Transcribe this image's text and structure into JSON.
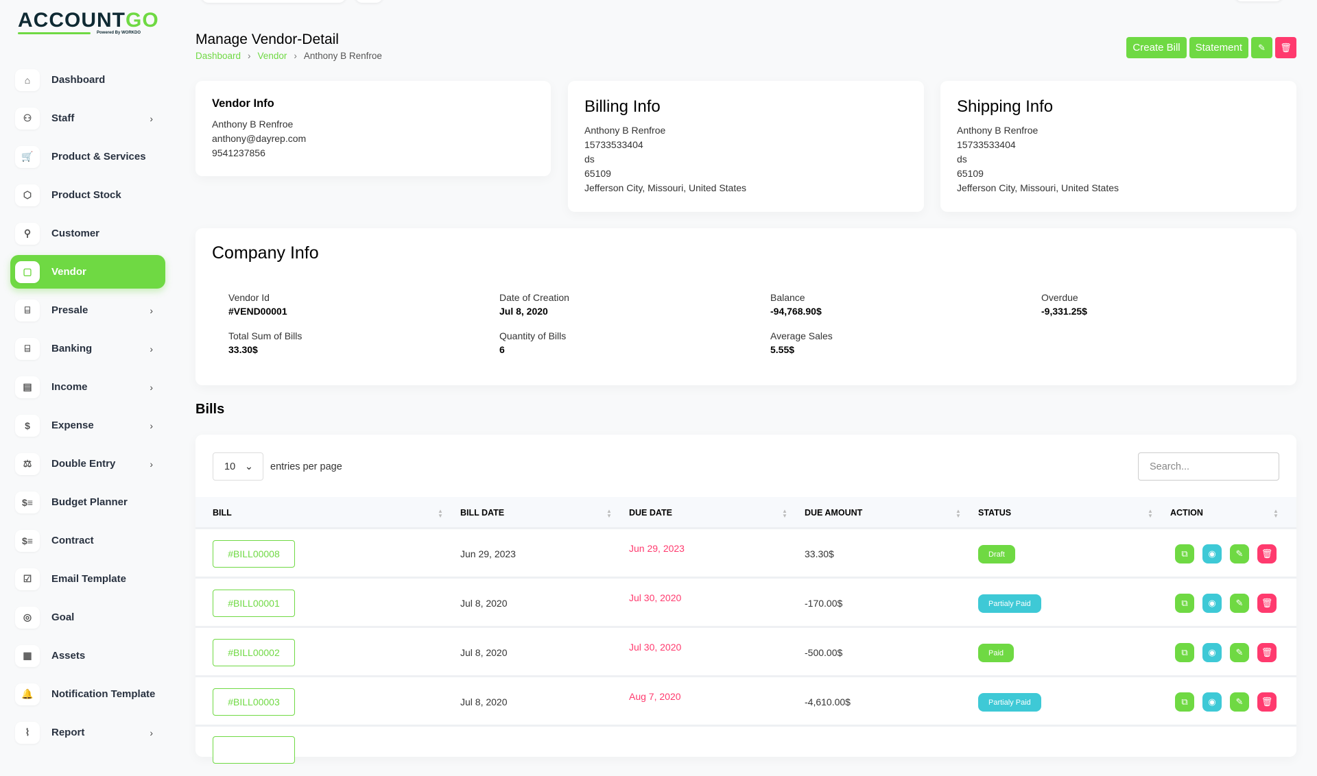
{
  "brand": {
    "name_dark": "ACCOUNT",
    "name_green": "GO",
    "powered": "Powered By WORKDO"
  },
  "sidebar": {
    "items": [
      {
        "label": "Dashboard",
        "icon": "home-icon",
        "glyph": "⌂",
        "chev": false
      },
      {
        "label": "Staff",
        "icon": "users-icon",
        "glyph": "⚇",
        "chev": true
      },
      {
        "label": "Product & Services",
        "icon": "cart-icon",
        "glyph": "🛒",
        "chev": false
      },
      {
        "label": "Product Stock",
        "icon": "box-icon",
        "glyph": "⬡",
        "chev": false
      },
      {
        "label": "Customer",
        "icon": "user-plus-icon",
        "glyph": "⚲",
        "chev": false
      },
      {
        "label": "Vendor",
        "icon": "note-icon",
        "glyph": "▢",
        "chev": false,
        "active": true
      },
      {
        "label": "Presale",
        "icon": "building-bank-icon",
        "glyph": "⌸",
        "chev": true
      },
      {
        "label": "Banking",
        "icon": "building-bank-icon",
        "glyph": "⌸",
        "chev": true
      },
      {
        "label": "Income",
        "icon": "file-invoice-icon",
        "glyph": "▤",
        "chev": true
      },
      {
        "label": "Expense",
        "icon": "receipt-dollar-icon",
        "glyph": "$",
        "chev": true
      },
      {
        "label": "Double Entry",
        "icon": "scale-icon",
        "glyph": "⚖",
        "chev": true
      },
      {
        "label": "Budget Planner",
        "icon": "coins-icon",
        "glyph": "$≡",
        "chev": false
      },
      {
        "label": "Contract",
        "icon": "coins-icon",
        "glyph": "$≡",
        "chev": false
      },
      {
        "label": "Email Template",
        "icon": "clipboard-check-icon",
        "glyph": "☑",
        "chev": false
      },
      {
        "label": "Goal",
        "icon": "target-icon",
        "glyph": "◎",
        "chev": false
      },
      {
        "label": "Assets",
        "icon": "calculator-icon",
        "glyph": "▦",
        "chev": false
      },
      {
        "label": "Notification Template",
        "icon": "bell-icon",
        "glyph": "🔔",
        "chev": false
      },
      {
        "label": "Report",
        "icon": "chart-line-icon",
        "glyph": "⌇",
        "chev": true
      }
    ]
  },
  "header": {
    "title": "Manage Vendor-Detail",
    "breadcrumb": [
      "Dashboard",
      "Vendor",
      "Anthony B Renfroe"
    ],
    "create_bill": "Create Bill",
    "statement": "Statement"
  },
  "vendor_info": {
    "title": "Vendor Info",
    "name": "Anthony B Renfroe",
    "email": "anthony@dayrep.com",
    "phone": "9541237856"
  },
  "billing_info": {
    "title": "Billing Info",
    "name": "Anthony B Renfroe",
    "phone": "15733533404",
    "line": "ds",
    "zip": "65109",
    "address": "Jefferson City, Missouri, United States"
  },
  "shipping_info": {
    "title": "Shipping Info",
    "name": "Anthony B Renfroe",
    "phone": "15733533404",
    "line": "ds",
    "zip": "65109",
    "address": "Jefferson City, Missouri, United States"
  },
  "company_info": {
    "title": "Company Info",
    "fields": [
      {
        "label": "Vendor Id",
        "value": "#VEND00001"
      },
      {
        "label": "Date of Creation",
        "value": "Jul 8, 2020"
      },
      {
        "label": "Balance",
        "value": "-94,768.90$"
      },
      {
        "label": "Overdue",
        "value": "-9,331.25$"
      },
      {
        "label": "Total Sum of Bills",
        "value": "33.30$"
      },
      {
        "label": "Quantity of Bills",
        "value": "6"
      },
      {
        "label": "Average Sales",
        "value": "5.55$"
      }
    ]
  },
  "bills": {
    "title": "Bills",
    "per_page": "10",
    "entries_label": "entries per page",
    "search_placeholder": "Search...",
    "columns": [
      "BILL",
      "BILL DATE",
      "DUE DATE",
      "DUE AMOUNT",
      "STATUS",
      "ACTION"
    ],
    "rows": [
      {
        "bill": "#BILL00008",
        "date": "Jun 29, 2023",
        "due": "Jun 29, 2023",
        "amount": "33.30$",
        "status": "Draft",
        "status_color": "#6fd943"
      },
      {
        "bill": "#BILL00001",
        "date": "Jul 8, 2020",
        "due": "Jul 30, 2020",
        "amount": "-170.00$",
        "status": "Partialy Paid",
        "status_color": "#3ec9d6"
      },
      {
        "bill": "#BILL00002",
        "date": "Jul 8, 2020",
        "due": "Jul 30, 2020",
        "amount": "-500.00$",
        "status": "Paid",
        "status_color": "#6fd943"
      },
      {
        "bill": "#BILL00003",
        "date": "Jul 8, 2020",
        "due": "Aug 7, 2020",
        "amount": "-4,610.00$",
        "status": "Partialy Paid",
        "status_color": "#3ec9d6"
      }
    ]
  },
  "colors": {
    "primary": "#6fd943",
    "danger": "#ff3a6e",
    "info": "#3ec9d6"
  }
}
